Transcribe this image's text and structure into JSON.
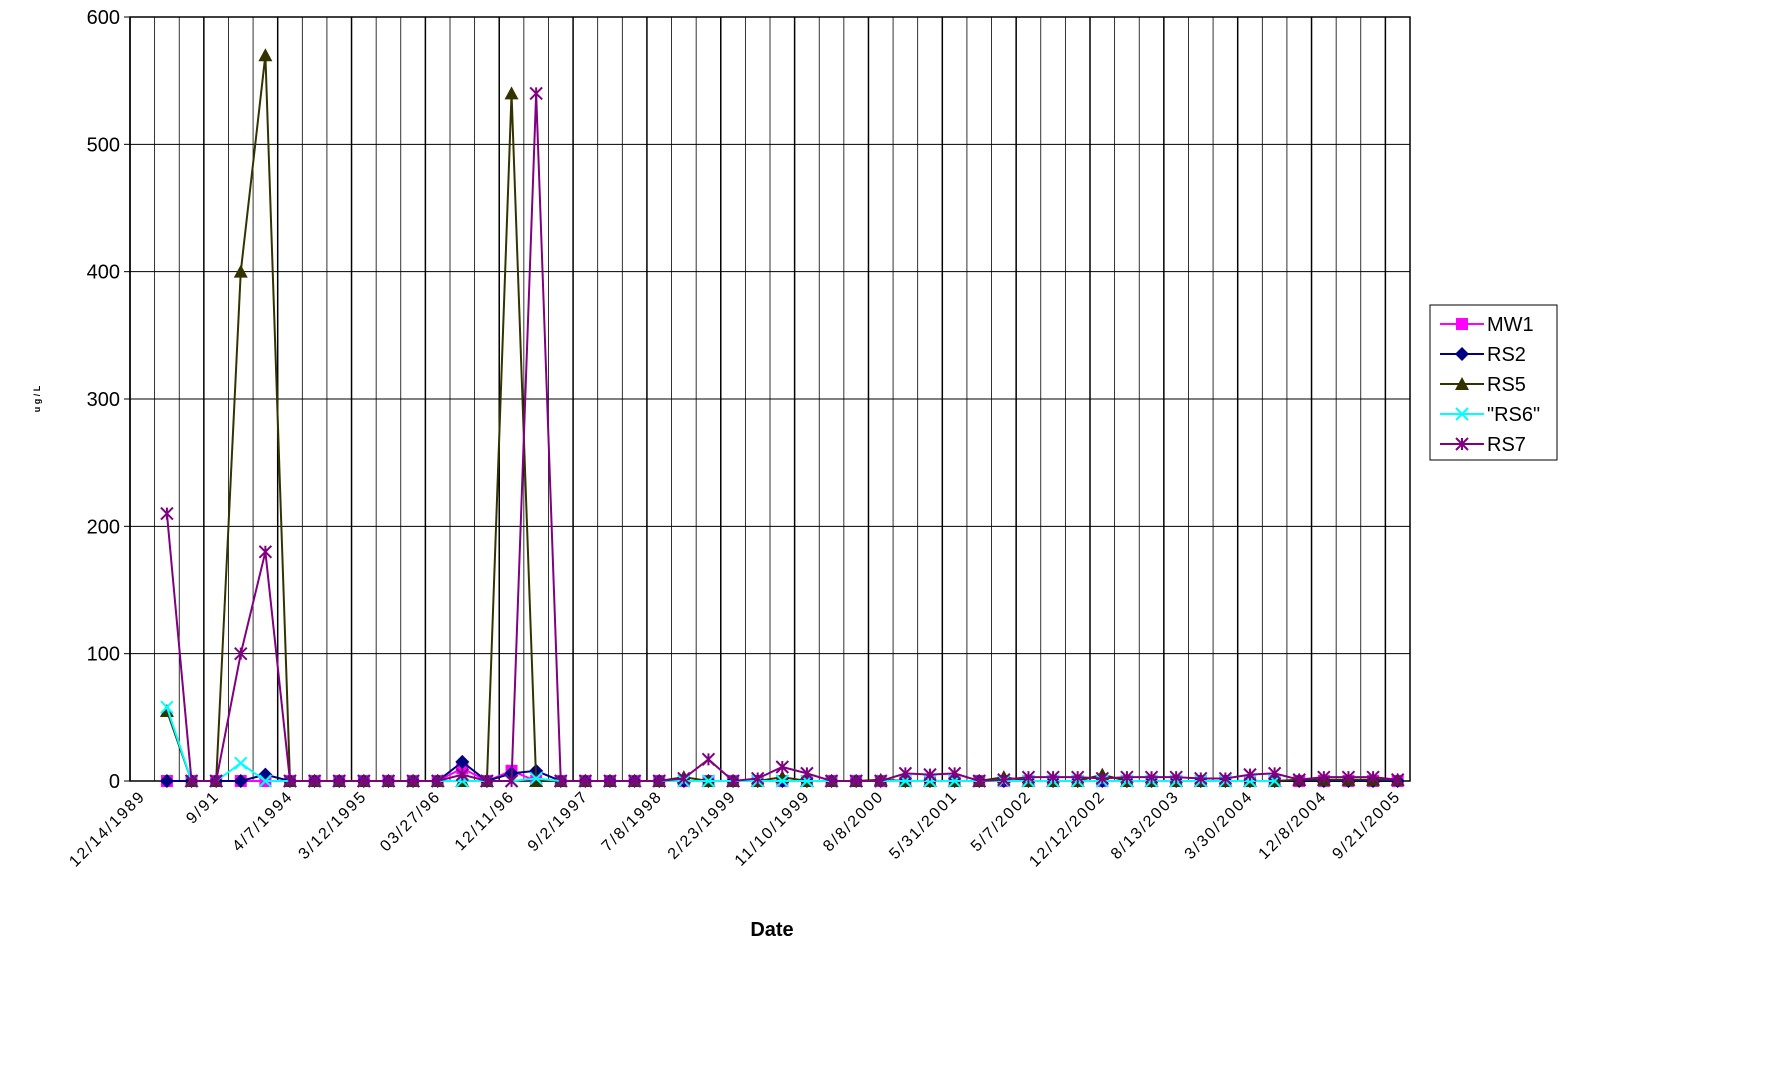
{
  "chart_data": {
    "type": "line",
    "x_label": "Date",
    "y_label": "u g / L",
    "categories": [
      "12/14/1989",
      null,
      null,
      "9/91",
      null,
      null,
      "4/7/1994",
      null,
      null,
      "3/12/1995",
      null,
      null,
      "03/27/96",
      null,
      null,
      "12/11/96",
      null,
      null,
      "9/2/1997",
      null,
      null,
      "7/8/1998",
      null,
      null,
      "2/23/1999",
      null,
      null,
      "11/10/1999",
      null,
      null,
      "8/8/2000",
      null,
      null,
      "5/31/2001",
      null,
      null,
      "5/7/2002",
      null,
      null,
      "12/12/2002",
      null,
      null,
      "8/13/2003",
      null,
      null,
      "3/30/2004",
      null,
      null,
      "12/8/2004",
      null,
      null,
      "9/21/2005"
    ],
    "ylim": [
      0,
      600
    ],
    "yticks": [
      0,
      100,
      200,
      300,
      400,
      500,
      600
    ],
    "grid": true,
    "legend": "right",
    "series": [
      {
        "name": "MW1",
        "color": "#ff00ff",
        "marker": "square",
        "values": [
          null,
          0,
          0,
          0,
          0,
          0,
          0,
          0,
          0,
          0,
          0,
          0,
          0,
          10,
          0,
          8,
          0,
          0,
          0,
          0,
          0,
          0,
          0,
          0,
          0,
          0,
          0,
          0,
          0,
          0,
          0,
          0,
          0,
          0,
          0,
          0,
          0,
          0,
          0,
          0,
          0,
          0,
          0,
          0,
          0,
          0,
          0,
          0,
          0,
          0,
          0,
          0
        ]
      },
      {
        "name": "RS2",
        "color": "#000080",
        "marker": "diamond",
        "values": [
          null,
          0,
          0,
          0,
          0,
          5,
          0,
          0,
          0,
          0,
          0,
          0,
          0,
          15,
          0,
          6,
          8,
          0,
          0,
          0,
          0,
          0,
          0,
          0,
          0,
          0,
          0,
          0,
          0,
          0,
          0,
          0,
          0,
          0,
          0,
          0,
          0,
          0,
          0,
          0,
          0,
          0,
          0,
          0,
          0,
          0,
          0,
          0,
          0,
          0,
          0,
          0
        ]
      },
      {
        "name": "RS5",
        "color": "#333300",
        "marker": "triangle",
        "values": [
          null,
          55,
          0,
          0,
          400,
          570,
          0,
          0,
          0,
          0,
          0,
          0,
          0,
          0,
          0,
          540,
          0,
          0,
          0,
          0,
          0,
          0,
          3,
          0,
          0,
          0,
          3,
          0,
          0,
          0,
          1,
          0,
          0,
          0,
          0,
          3,
          0,
          0,
          0,
          5,
          0,
          0,
          0,
          0,
          0,
          0,
          0,
          1,
          1,
          1,
          1,
          1
        ]
      },
      {
        "name": "\"RS6\"",
        "color": "#00ffff",
        "marker": "x",
        "values": [
          null,
          58,
          0,
          0,
          14,
          0,
          0,
          0,
          0,
          0,
          0,
          0,
          0,
          0,
          0,
          0,
          2,
          0,
          0,
          0,
          0,
          0,
          0,
          0,
          0,
          0,
          0,
          0,
          0,
          0,
          0,
          0,
          0,
          0,
          0,
          0,
          0,
          0,
          0,
          0,
          0,
          0,
          0,
          0,
          0,
          0,
          0,
          null,
          null,
          null,
          null,
          null
        ]
      },
      {
        "name": "RS7",
        "color": "#800080",
        "marker": "star",
        "values": [
          null,
          210,
          0,
          0,
          100,
          180,
          0,
          0,
          0,
          0,
          0,
          0,
          0,
          5,
          0,
          0,
          540,
          0,
          0,
          0,
          0,
          0,
          2,
          17,
          0,
          2,
          11,
          6,
          0,
          0,
          0,
          6,
          5,
          6,
          0,
          1,
          3,
          3,
          3,
          2,
          3,
          3,
          3,
          2,
          2,
          5,
          6,
          1,
          3,
          3,
          3,
          1
        ]
      }
    ]
  }
}
